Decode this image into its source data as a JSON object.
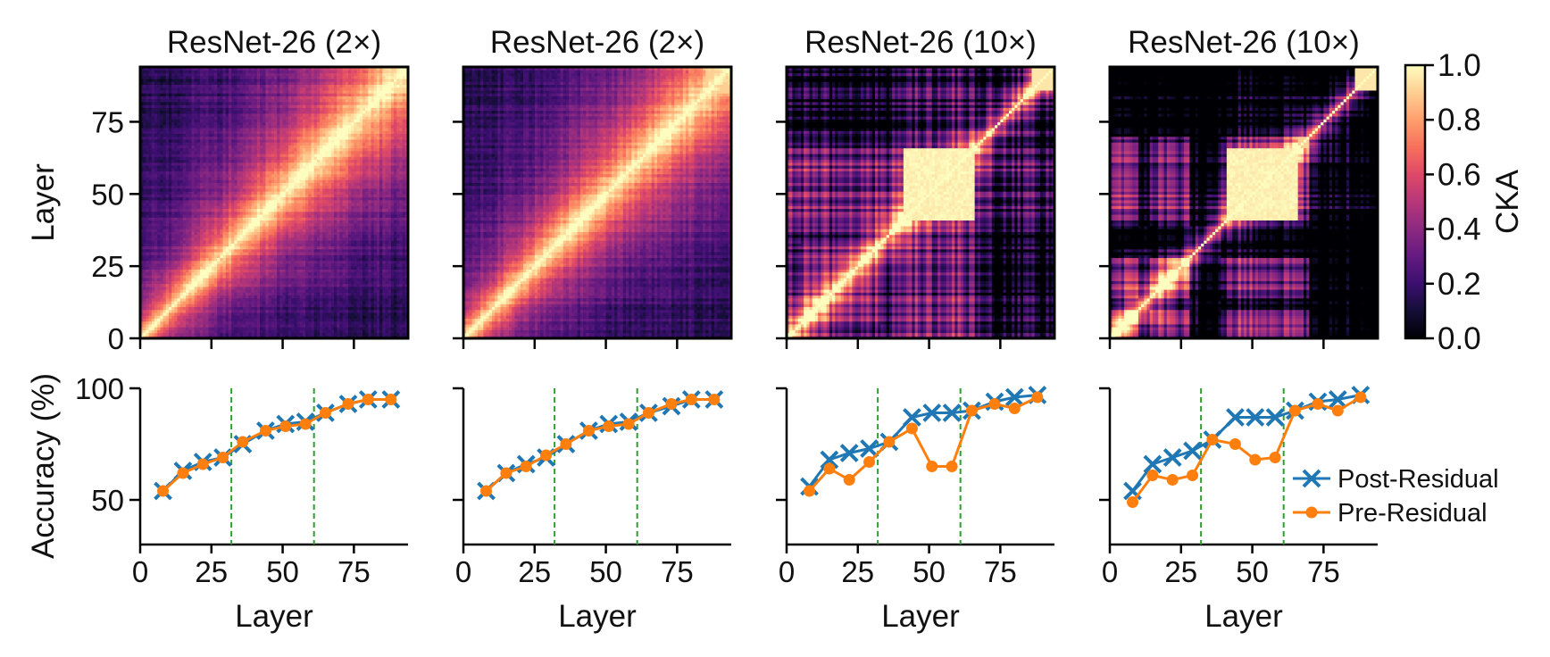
{
  "figure": {
    "colorbar": {
      "label": "CKA",
      "ticks": [
        "0.0",
        "0.2",
        "0.4",
        "0.6",
        "0.8",
        "1.0"
      ],
      "range": [
        0,
        1
      ]
    },
    "legend": {
      "placement": "lower-right",
      "entries": [
        "Post-Residual",
        "Pre-Residual"
      ]
    },
    "colors": {
      "post": "#1f77b4",
      "pre": "#ff7f0e",
      "stage_line": "#2ca02c"
    }
  },
  "heatmap_axes": {
    "ylabel": "Layer",
    "yticks": [
      "0",
      "25",
      "50",
      "75"
    ]
  },
  "accuracy_axes": {
    "ylabel": "Accuracy (%)",
    "yticks": [
      "50",
      "100"
    ],
    "xlabel": "Layer",
    "xticks": [
      "0",
      "25",
      "50",
      "75"
    ]
  },
  "chart_data": [
    {
      "type": "heatmap",
      "title": "ResNet-26 (2×)",
      "layers": 94,
      "range": [
        0,
        1
      ],
      "block_structure": false
    },
    {
      "type": "heatmap",
      "title": "ResNet-26 (2×)",
      "layers": 94,
      "range": [
        0,
        1
      ],
      "block_structure": false
    },
    {
      "type": "heatmap",
      "title": "ResNet-26 (10×)",
      "layers": 94,
      "range": [
        0,
        1
      ],
      "block_structure": true,
      "block_layers": [
        41,
        65
      ]
    },
    {
      "type": "heatmap",
      "title": "ResNet-26 (10×)",
      "layers": 94,
      "range": [
        0,
        1
      ],
      "block_structure": true,
      "block_layers": [
        41,
        65
      ]
    },
    {
      "type": "line",
      "xlabel": "Layer",
      "ylabel": "Accuracy (%)",
      "xlim": [
        0,
        94
      ],
      "ylim": [
        30,
        100
      ],
      "stage_boundaries": [
        32,
        61
      ],
      "series": [
        {
          "name": "Post-Residual",
          "x": [
            8,
            15,
            22,
            29,
            36,
            44,
            51,
            58,
            65,
            73,
            80,
            88
          ],
          "y": [
            54,
            63,
            67,
            69,
            75,
            81,
            84,
            85,
            89,
            93,
            95,
            95
          ]
        },
        {
          "name": "Pre-Residual",
          "x": [
            8,
            15,
            22,
            29,
            36,
            44,
            51,
            58,
            65,
            73,
            80,
            88
          ],
          "y": [
            54,
            62,
            66,
            69,
            76,
            81,
            83,
            84,
            89,
            93,
            95,
            95
          ]
        }
      ]
    },
    {
      "type": "line",
      "xlabel": "Layer",
      "ylabel": "Accuracy (%)",
      "xlim": [
        0,
        94
      ],
      "ylim": [
        30,
        100
      ],
      "stage_boundaries": [
        32,
        61
      ],
      "series": [
        {
          "name": "Post-Residual",
          "x": [
            8,
            15,
            22,
            29,
            36,
            44,
            51,
            58,
            65,
            73,
            80,
            88
          ],
          "y": [
            54,
            62,
            66,
            69,
            75,
            81,
            84,
            85,
            89,
            92,
            95,
            95
          ]
        },
        {
          "name": "Pre-Residual",
          "x": [
            8,
            15,
            22,
            29,
            36,
            44,
            51,
            58,
            65,
            73,
            80,
            88
          ],
          "y": [
            54,
            62,
            65,
            70,
            75,
            81,
            83,
            84,
            89,
            93,
            95,
            95
          ]
        }
      ]
    },
    {
      "type": "line",
      "xlabel": "Layer",
      "ylabel": "Accuracy (%)",
      "xlim": [
        0,
        94
      ],
      "ylim": [
        30,
        100
      ],
      "stage_boundaries": [
        32,
        61
      ],
      "series": [
        {
          "name": "Post-Residual",
          "x": [
            8,
            15,
            22,
            29,
            36,
            44,
            51,
            58,
            65,
            73,
            80,
            88
          ],
          "y": [
            56,
            68,
            71,
            73,
            76,
            87,
            89,
            89,
            90,
            94,
            96,
            97
          ]
        },
        {
          "name": "Pre-Residual",
          "x": [
            8,
            15,
            22,
            29,
            36,
            44,
            51,
            58,
            65,
            73,
            80,
            88
          ],
          "y": [
            54,
            64,
            59,
            67,
            76,
            82,
            65,
            65,
            90,
            93,
            91,
            96
          ]
        }
      ]
    },
    {
      "type": "line",
      "xlabel": "Layer",
      "ylabel": "Accuracy (%)",
      "xlim": [
        0,
        94
      ],
      "ylim": [
        30,
        100
      ],
      "stage_boundaries": [
        32,
        61
      ],
      "series": [
        {
          "name": "Post-Residual",
          "x": [
            8,
            15,
            22,
            29,
            36,
            44,
            51,
            58,
            65,
            73,
            80,
            88
          ],
          "y": [
            54,
            66,
            69,
            72,
            77,
            87,
            87,
            87,
            90,
            94,
            95,
            97
          ]
        },
        {
          "name": "Pre-Residual",
          "x": [
            8,
            15,
            22,
            29,
            36,
            44,
            51,
            58,
            65,
            73,
            80,
            88
          ],
          "y": [
            49,
            61,
            59,
            61,
            77,
            75,
            68,
            69,
            90,
            93,
            90,
            96
          ]
        }
      ]
    }
  ]
}
